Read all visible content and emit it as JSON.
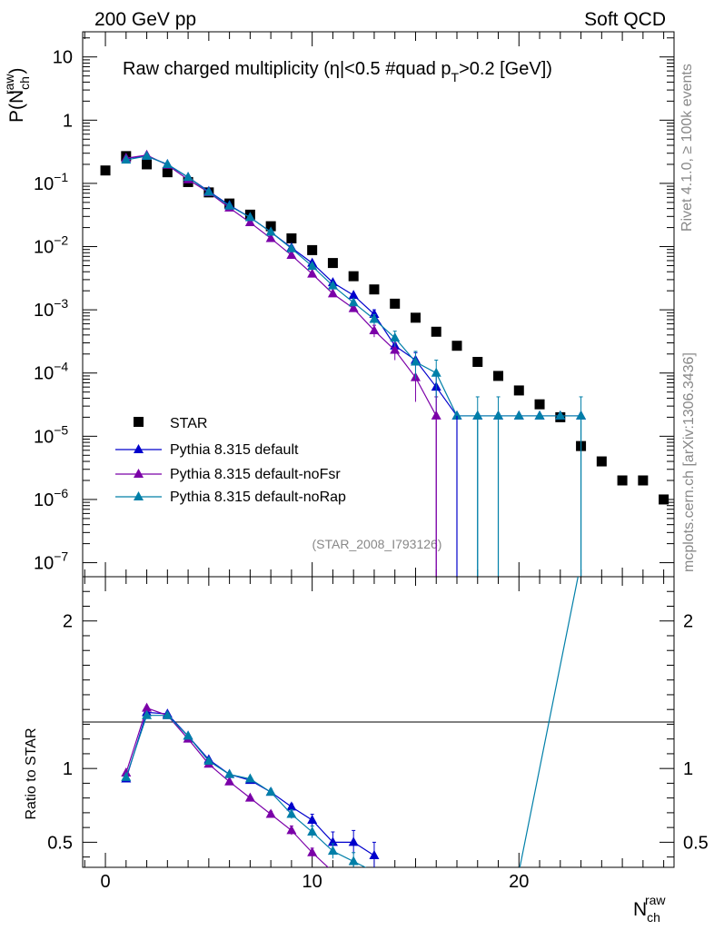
{
  "header": {
    "left": "200 GeV pp",
    "right": "Soft QCD"
  },
  "side": {
    "rivet": "Rivet 4.1.0, ≥ 100k events",
    "mcplots": "mcplots.cern.ch [arXiv:1306.3436]"
  },
  "colors": {
    "star": "#000000",
    "default": "#0000cc",
    "nofsr": "#7b00a8",
    "norap": "#007fa8"
  },
  "chart_data": [
    {
      "type": "scatter",
      "title": "Raw charged multiplicity (|η|<0.5 #quad p_T>0.2 [GeV])",
      "title_parts": {
        "pre": "Raw charged multiplicity (",
        "eta": "η",
        "mid": "|<0.5 #quad p",
        "sub": "T",
        "post": ">0.2 [GeV])"
      },
      "analysis_id": "(STAR_2008_I793126)",
      "ylabel": {
        "main": "P(N",
        "sub": "ch",
        "sup": "raw",
        "close": ")"
      },
      "yscale": "log",
      "ylim": [
        6e-08,
        25
      ],
      "xlim": [
        -1.1,
        27.5
      ],
      "ytick_labels": [
        {
          "v": 10,
          "m": "10",
          "e": ""
        },
        {
          "v": 1,
          "m": "1",
          "e": ""
        },
        {
          "v": 0.1,
          "m": "10",
          "e": "−1"
        },
        {
          "v": 0.01,
          "m": "10",
          "e": "−2"
        },
        {
          "v": 0.001,
          "m": "10",
          "e": "−3"
        },
        {
          "v": 0.0001,
          "m": "10",
          "e": "−4"
        },
        {
          "v": 1e-05,
          "m": "10",
          "e": "−5"
        },
        {
          "v": 1e-06,
          "m": "10",
          "e": "−6"
        },
        {
          "v": 1e-07,
          "m": "10",
          "e": "−7"
        }
      ],
      "legend": [
        "STAR",
        "Pythia 8.315 default",
        "Pythia 8.315 default-noFsr",
        "Pythia 8.315 default-noRap"
      ],
      "series": [
        {
          "name": "STAR",
          "style": "square",
          "x": [
            0,
            1,
            2,
            3,
            4,
            5,
            6,
            7,
            8,
            9,
            10,
            11,
            12,
            13,
            14,
            15,
            16,
            17,
            18,
            19,
            20,
            21,
            22,
            23,
            24,
            25,
            26,
            27
          ],
          "y": [
            0.16,
            0.27,
            0.2,
            0.15,
            0.105,
            0.072,
            0.048,
            0.032,
            0.021,
            0.0135,
            0.0088,
            0.0055,
            0.0034,
            0.0021,
            0.00125,
            0.00075,
            0.00045,
            0.00027,
            0.00015,
            9e-05,
            5.3e-05,
            3.2e-05,
            2e-05,
            7e-06,
            4e-06,
            2e-06,
            2e-06,
            1e-06
          ]
        },
        {
          "name": "Pythia 8.315 default",
          "style": "triangle",
          "x": [
            1,
            2,
            3,
            4,
            5,
            6,
            7,
            8,
            9,
            10,
            11,
            12,
            13,
            14,
            15,
            16,
            17,
            18,
            19,
            20,
            21,
            22,
            23
          ],
          "y": [
            0.25,
            0.27,
            0.2,
            0.125,
            0.075,
            0.045,
            0.029,
            0.017,
            0.0096,
            0.0055,
            0.0027,
            0.0017,
            0.00085,
            0.00027,
            0.00016,
            6e-05,
            2.1e-05,
            2.1e-05,
            2.1e-05,
            2.1e-05,
            2.1e-05,
            2.1e-05,
            2.1e-05
          ],
          "err": [
            0,
            0,
            0,
            0,
            0,
            0,
            0,
            0,
            0,
            0,
            0,
            0,
            0.00015,
            6e-05,
            5e-05,
            4e-05,
            0,
            0,
            0,
            0,
            0,
            0,
            0
          ]
        },
        {
          "name": "Pythia 8.315 default-noFsr",
          "style": "triangle",
          "x": [
            1,
            2,
            3,
            4,
            5,
            6,
            7,
            8,
            9,
            10,
            11,
            12,
            13,
            14,
            15,
            16
          ],
          "y": [
            0.25,
            0.28,
            0.195,
            0.115,
            0.072,
            0.041,
            0.024,
            0.0135,
            0.0073,
            0.0037,
            0.0018,
            0.00105,
            0.00047,
            0.00023,
            8.5e-05,
            2.1e-05
          ],
          "err": [
            0,
            0,
            0,
            0,
            0,
            0,
            0,
            0,
            0,
            0,
            0,
            0,
            0.0001,
            7e-05,
            5e-05,
            2.1e-05
          ]
        },
        {
          "name": "Pythia 8.315 default-noRap",
          "style": "triangle",
          "x": [
            1,
            2,
            3,
            4,
            5,
            6,
            7,
            8,
            9,
            10,
            11,
            12,
            13,
            14,
            15,
            16,
            17,
            18,
            19,
            20,
            21,
            22,
            23
          ],
          "y": [
            0.235,
            0.27,
            0.2,
            0.125,
            0.073,
            0.044,
            0.029,
            0.017,
            0.0093,
            0.0049,
            0.0024,
            0.0013,
            0.00071,
            0.00036,
            0.00015,
            0.0001,
            2.1e-05,
            2.1e-05,
            2.1e-05,
            2.1e-05,
            2.1e-05,
            2.1e-05,
            2.1e-05
          ],
          "err": [
            0,
            0,
            0,
            0,
            0,
            0,
            0,
            0,
            0,
            0,
            0,
            0,
            0.00013,
            0.0001,
            7e-05,
            6e-05,
            0,
            2.1e-05,
            2.1e-05,
            0,
            0,
            0,
            2.1e-05
          ]
        }
      ]
    },
    {
      "type": "line",
      "xlabel": {
        "main": "N",
        "sub": "ch",
        "sup": "raw"
      },
      "ylabel": "Ratio to STAR",
      "ylim": [
        0.33,
        2.3
      ],
      "xlim": [
        -1.1,
        27.5
      ],
      "xticks": [
        0,
        10,
        20
      ],
      "ytick_labels": [
        {
          "v": 0.5,
          "t": "0.5"
        },
        {
          "v": 1,
          "t": "1"
        },
        {
          "v": 2,
          "t": "2"
        }
      ],
      "series": [
        {
          "name": "Pythia 8.315 default",
          "x": [
            1,
            2,
            3,
            4,
            5,
            6,
            7,
            8,
            9,
            10,
            11,
            12,
            13
          ],
          "y": [
            0.93,
            1.38,
            1.37,
            1.22,
            1.06,
            0.96,
            0.92,
            0.84,
            0.74,
            0.65,
            0.5,
            0.5,
            0.41
          ],
          "err": [
            0,
            0,
            0,
            0,
            0,
            0,
            0,
            0.01,
            0.02,
            0.04,
            0.07,
            0.08,
            0.09
          ]
        },
        {
          "name": "Pythia 8.315 default-noFsr",
          "x": [
            1,
            2,
            3,
            4,
            5,
            6,
            7,
            8,
            9,
            10,
            11
          ],
          "y": [
            0.97,
            1.41,
            1.36,
            1.2,
            1.03,
            0.91,
            0.8,
            0.69,
            0.58,
            0.43,
            0.3
          ],
          "err": [
            0,
            0,
            0,
            0,
            0,
            0,
            0.01,
            0.02,
            0.03,
            0.03,
            0
          ]
        },
        {
          "name": "Pythia 8.315 default-noRap",
          "x": [
            1,
            2,
            3,
            4,
            5,
            6,
            7,
            8,
            9,
            10,
            11,
            12,
            13,
            20,
            23
          ],
          "y": [
            0.94,
            1.36,
            1.36,
            1.22,
            1.05,
            0.96,
            0.93,
            0.84,
            0.69,
            0.57,
            0.44,
            0.37,
            0.3,
            0.3,
            2.4
          ],
          "err": [
            0,
            0,
            0,
            0,
            0,
            0,
            0.01,
            0.02,
            0.03,
            0.04,
            0.05,
            0.06,
            0,
            0,
            0
          ]
        }
      ]
    }
  ]
}
